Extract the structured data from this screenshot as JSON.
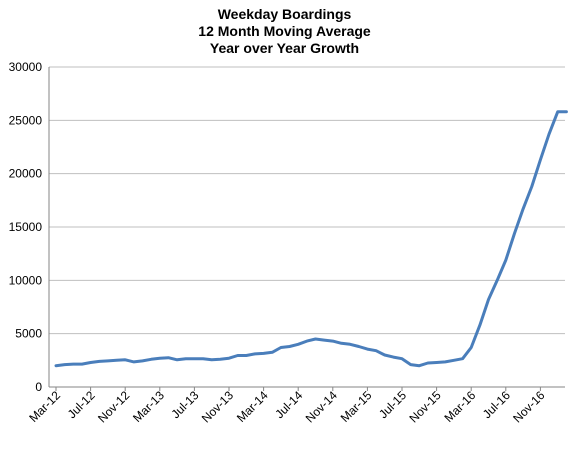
{
  "chart_data": {
    "type": "line",
    "title_lines": [
      "Weekday Boardings",
      "12 Month Moving Average",
      "Year over Year Growth"
    ],
    "xlabel": "",
    "ylabel": "",
    "ylim": [
      0,
      30000
    ],
    "yticks": [
      0,
      5000,
      10000,
      15000,
      20000,
      25000,
      30000
    ],
    "xtick_labels": [
      "Mar-12",
      "Jul-12",
      "Nov-12",
      "Mar-13",
      "Jul-13",
      "Nov-13",
      "Mar-14",
      "Jul-14",
      "Nov-14",
      "Mar-15",
      "Jul-15",
      "Nov-15",
      "Mar-16",
      "Jul-16",
      "Nov-16"
    ],
    "grid": "horizontal",
    "legend": "none",
    "series": [
      {
        "color": "#4a7ebb",
        "x": [
          "Mar-12",
          "Apr-12",
          "May-12",
          "Jun-12",
          "Jul-12",
          "Aug-12",
          "Sep-12",
          "Oct-12",
          "Nov-12",
          "Dec-12",
          "Jan-13",
          "Feb-13",
          "Mar-13",
          "Apr-13",
          "May-13",
          "Jun-13",
          "Jul-13",
          "Aug-13",
          "Sep-13",
          "Oct-13",
          "Nov-13",
          "Dec-13",
          "Jan-14",
          "Feb-14",
          "Mar-14",
          "Apr-14",
          "May-14",
          "Jun-14",
          "Jul-14",
          "Aug-14",
          "Sep-14",
          "Oct-14",
          "Nov-14",
          "Dec-14",
          "Jan-15",
          "Feb-15",
          "Mar-15",
          "Apr-15",
          "May-15",
          "Jun-15",
          "Jul-15",
          "Aug-15",
          "Sep-15",
          "Oct-15",
          "Nov-15",
          "Dec-15",
          "Jan-16",
          "Feb-16",
          "Mar-16",
          "Apr-16",
          "May-16",
          "Jun-16",
          "Jul-16",
          "Aug-16",
          "Sep-16",
          "Oct-16",
          "Nov-16",
          "Dec-16",
          "Jan-17",
          "Feb-17"
        ],
        "values": [
          2000,
          2100,
          2150,
          2150,
          2300,
          2400,
          2450,
          2500,
          2550,
          2350,
          2450,
          2600,
          2700,
          2750,
          2550,
          2650,
          2650,
          2650,
          2550,
          2600,
          2700,
          2950,
          2950,
          3100,
          3150,
          3250,
          3700,
          3800,
          4000,
          4300,
          4500,
          4400,
          4300,
          4100,
          4000,
          3800,
          3550,
          3400,
          3000,
          2800,
          2650,
          2100,
          2000,
          2250,
          2300,
          2350,
          2500,
          2650,
          3700,
          5800,
          8200,
          10000,
          11900,
          14400,
          16700,
          18800,
          21300,
          23700,
          25800,
          25800
        ]
      }
    ]
  }
}
